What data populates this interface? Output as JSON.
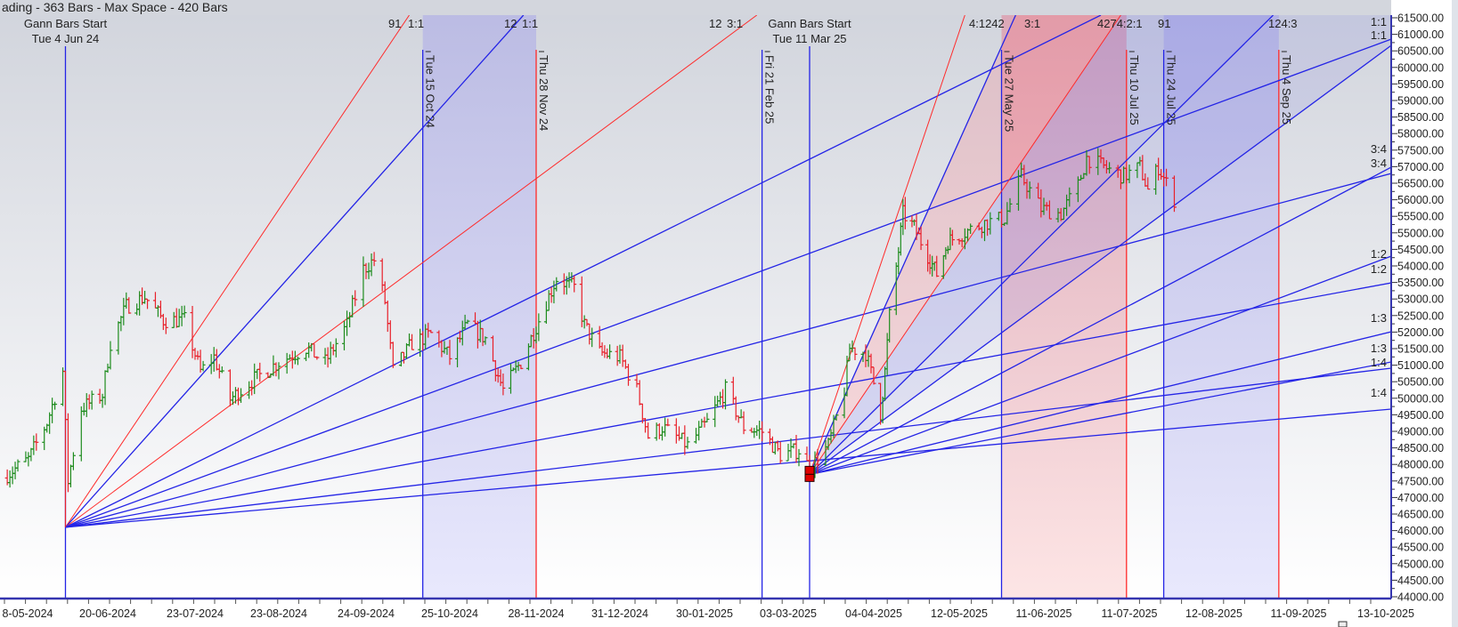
{
  "header": {
    "title": "ading - 363 Bars -  Max Space - 420 Bars"
  },
  "colors": {
    "blue_line": "#2424e6",
    "red_line": "#ff2a2a",
    "up_bar": "#1e8c1e",
    "down_bar": "#e8202a",
    "axis": "#3535b0"
  },
  "chart_data": {
    "type": "ohlc",
    "y_axis": {
      "min": 44000,
      "max": 61500,
      "step": 500,
      "decimals": 2,
      "position": "right"
    },
    "ylim": [
      43950,
      61580
    ],
    "x_ticks": [
      "8-05-2024",
      "20-06-2024",
      "23-07-2024",
      "23-08-2024",
      "24-09-2024",
      "25-10-2024",
      "28-11-2024",
      "31-12-2024",
      "30-01-2025",
      "03-03-2025",
      "04-04-2025",
      "12-05-2025",
      "11-06-2025",
      "11-07-2025",
      "12-08-2025",
      "11-09-2025",
      "13-10-2025"
    ],
    "gann_starts": [
      {
        "date": "2024-06-04",
        "price": 46100,
        "label": "Gann Bars Start",
        "date_label": "Tue 4 Jun 24"
      },
      {
        "date": "2025-03-11",
        "price": 47700,
        "label": "Gann Bars Start",
        "date_label": "Tue 11 Mar 25"
      }
    ],
    "vertical_lines": [
      {
        "date": "2024-10-15",
        "label": "Tue 15 Oct 24",
        "color": "blue"
      },
      {
        "date": "2024-11-28",
        "label": "Thu 28 Nov 24",
        "color": "red"
      },
      {
        "date": "2025-02-21",
        "label": "Fri 21 Feb 25",
        "color": "blue"
      },
      {
        "date": "2025-05-27",
        "label": "Tue 27 May 25",
        "color": "blue"
      },
      {
        "date": "2025-07-10",
        "label": "Thu 10 Jul 25",
        "color": "red"
      },
      {
        "date": "2025-07-24",
        "label": "Thu 24 Jul 25",
        "color": "blue"
      },
      {
        "date": "2025-09-04",
        "label": "Thu 4 Sep 25",
        "color": "red"
      }
    ],
    "bands": [
      {
        "from": "2024-10-15",
        "to": "2024-11-28",
        "color": "lavender"
      },
      {
        "from": "2025-05-27",
        "to": "2025-07-10",
        "color": "pink"
      },
      {
        "from": "2025-07-24",
        "to": "2025-09-04",
        "color": "lavender"
      }
    ],
    "fan_lines": [
      {
        "origin": 0,
        "end_date": "2024-10-10",
        "end_price": 61580,
        "color": "red"
      },
      {
        "origin": 0,
        "end_date": "2024-11-23",
        "end_price": 61580,
        "color": "blue"
      },
      {
        "origin": 0,
        "end_date": "2025-02-19",
        "end_price": 61580,
        "color": "red"
      },
      {
        "origin": 0,
        "end_date": "2025-07-01",
        "end_price": 61580,
        "color": "blue"
      },
      {
        "origin": 0,
        "end_date": "2025-10-15",
        "end_price": 60855,
        "color": "blue",
        "ratio": "1:1"
      },
      {
        "origin": 0,
        "end_date": "2025-10-15",
        "end_price": 56796,
        "color": "blue",
        "ratio": "3:4"
      },
      {
        "origin": 0,
        "end_date": "2025-10-15",
        "end_price": 53489,
        "color": "blue",
        "ratio": "1:2"
      },
      {
        "origin": 0,
        "end_date": "2025-10-15",
        "end_price": 50909,
        "color": "blue",
        "ratio": "1:3"
      },
      {
        "origin": 0,
        "end_date": "2025-10-15",
        "end_price": 49672,
        "color": "blue",
        "ratio": "1:4"
      },
      {
        "origin": 1,
        "end_date": "2025-05-14",
        "end_price": 61580,
        "color": "red"
      },
      {
        "origin": 1,
        "end_date": "2025-06-01",
        "end_price": 61580,
        "color": "blue"
      },
      {
        "origin": 1,
        "end_date": "2025-07-08",
        "end_price": 61580,
        "color": "red"
      },
      {
        "origin": 1,
        "end_date": "2025-09-02",
        "end_price": 61580,
        "color": "blue"
      },
      {
        "origin": 1,
        "end_date": "2025-10-15",
        "end_price": 60667,
        "color": "blue",
        "ratio": "1:1"
      },
      {
        "origin": 1,
        "end_date": "2025-10-15",
        "end_price": 56984,
        "color": "blue",
        "ratio": "3:4"
      },
      {
        "origin": 1,
        "end_date": "2025-10-15",
        "end_price": 54296,
        "color": "blue",
        "ratio": "1:2"
      },
      {
        "origin": 1,
        "end_date": "2025-10-15",
        "end_price": 52011,
        "color": "blue",
        "ratio": "1:3"
      },
      {
        "origin": 1,
        "end_date": "2025-10-15",
        "end_price": 51097,
        "color": "blue",
        "ratio": "1:4"
      }
    ],
    "top_labels": [
      "91",
      "1:1",
      "12",
      "1:1",
      "12",
      "3:1",
      "4:1242",
      "3:1",
      "4274:2:1",
      "91",
      "124:3"
    ],
    "right_labels": [
      "1:1",
      "1:1",
      "3:4",
      "3:4",
      "1:2",
      "1:2",
      "1:3",
      "1:3",
      "1:4",
      "1:4"
    ],
    "price_path": [
      [
        "2024-05-11",
        47590
      ],
      [
        "2024-05-21",
        48150
      ],
      [
        "2024-05-28",
        49270
      ],
      [
        "2024-06-03",
        50810
      ],
      [
        "2024-06-05",
        47500
      ],
      [
        "2024-06-10",
        49690
      ],
      [
        "2024-06-18",
        50110
      ],
      [
        "2024-06-21",
        51660
      ],
      [
        "2024-06-27",
        52780
      ],
      [
        "2024-07-04",
        53060
      ],
      [
        "2024-07-11",
        52360
      ],
      [
        "2024-07-19",
        52360
      ],
      [
        "2024-07-25",
        50810
      ],
      [
        "2024-07-30",
        51240
      ],
      [
        "2024-08-05",
        49970
      ],
      [
        "2024-08-13",
        50530
      ],
      [
        "2024-08-23",
        51090
      ],
      [
        "2024-09-02",
        51520
      ],
      [
        "2024-09-09",
        51090
      ],
      [
        "2024-09-17",
        52220
      ],
      [
        "2024-09-23",
        53900
      ],
      [
        "2024-09-27",
        54180
      ],
      [
        "2024-10-01",
        52920
      ],
      [
        "2024-10-04",
        50810
      ],
      [
        "2024-10-11",
        51660
      ],
      [
        "2024-10-18",
        51940
      ],
      [
        "2024-10-25",
        51240
      ],
      [
        "2024-11-01",
        52220
      ],
      [
        "2024-11-08",
        51800
      ],
      [
        "2024-11-15",
        50250
      ],
      [
        "2024-11-22",
        51090
      ],
      [
        "2024-11-29",
        52360
      ],
      [
        "2024-12-06",
        53620
      ],
      [
        "2024-12-13",
        53340
      ],
      [
        "2024-12-17",
        52220
      ],
      [
        "2024-12-23",
        51380
      ],
      [
        "2024-12-31",
        51240
      ],
      [
        "2025-01-06",
        50250
      ],
      [
        "2025-01-10",
        48850
      ],
      [
        "2025-01-15",
        49130
      ],
      [
        "2025-01-24",
        48570
      ],
      [
        "2025-01-31",
        49270
      ],
      [
        "2025-02-07",
        50250
      ],
      [
        "2025-02-14",
        49130
      ],
      [
        "2025-02-21",
        48990
      ],
      [
        "2025-02-28",
        48290
      ],
      [
        "2025-03-07",
        48430
      ],
      [
        "2025-03-11",
        47870
      ],
      [
        "2025-03-18",
        48570
      ],
      [
        "2025-03-24",
        50250
      ],
      [
        "2025-03-26",
        51520
      ],
      [
        "2025-04-01",
        51380
      ],
      [
        "2025-04-07",
        49550
      ],
      [
        "2025-04-09",
        50810
      ],
      [
        "2025-04-11",
        52500
      ],
      [
        "2025-04-15",
        54460
      ],
      [
        "2025-04-17",
        55580
      ],
      [
        "2025-04-22",
        55160
      ],
      [
        "2025-04-28",
        54320
      ],
      [
        "2025-05-02",
        53760
      ],
      [
        "2025-05-07",
        54740
      ],
      [
        "2025-05-14",
        55020
      ],
      [
        "2025-05-21",
        55300
      ],
      [
        "2025-05-28",
        55440
      ],
      [
        "2025-06-03",
        56710
      ],
      [
        "2025-06-10",
        55730
      ],
      [
        "2025-06-17",
        55580
      ],
      [
        "2025-06-23",
        56430
      ],
      [
        "2025-06-26",
        57270
      ],
      [
        "2025-07-02",
        56990
      ],
      [
        "2025-07-09",
        56710
      ],
      [
        "2025-07-15",
        56990
      ],
      [
        "2025-07-18",
        56290
      ],
      [
        "2025-07-22",
        56990
      ],
      [
        "2025-07-28",
        56000
      ]
    ]
  }
}
